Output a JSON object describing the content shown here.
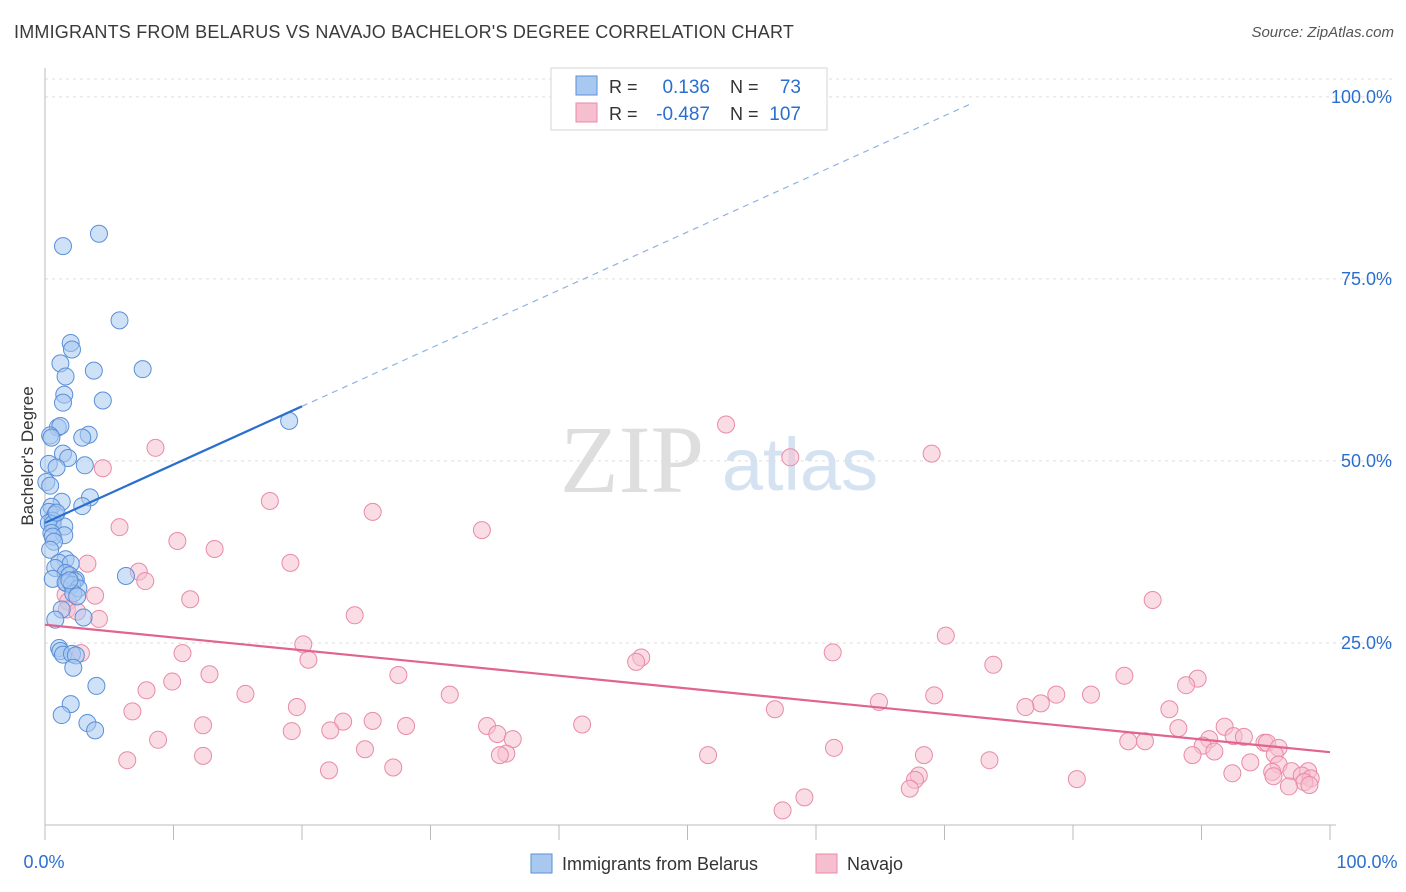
{
  "chart_data": {
    "type": "scatter",
    "title": "IMMIGRANTS FROM BELARUS VS NAVAJO BACHELOR'S DEGREE CORRELATION CHART",
    "source": "Source: ZipAtlas.com",
    "ylabel": "Bachelor's Degree",
    "xlabel": "",
    "xlim": [
      0,
      100
    ],
    "ylim": [
      0,
      103
    ],
    "x_tick_labels": [
      "0.0%",
      "100.0%"
    ],
    "y_ticks": [
      25,
      50,
      75,
      100
    ],
    "y_tick_labels": [
      "25.0%",
      "50.0%",
      "75.0%",
      "100.0%"
    ],
    "watermark": {
      "zip": "ZIP",
      "atlas": "atlas"
    },
    "colors": {
      "belarus_fill": "#a8c8f0",
      "belarus_stroke": "#5a8fd8",
      "belarus_line": "#2a6fcf",
      "navajo_fill": "#f6bfd0",
      "navajo_stroke": "#e98aa8",
      "navajo_line": "#e0648f",
      "value_text": "#2a6fcf",
      "grid": "#dddddd"
    },
    "legend": {
      "position": "top-center",
      "rows": [
        {
          "r_label": "R =",
          "r_value": "0.136",
          "n_label": "N =",
          "n_value": "73"
        },
        {
          "r_label": "R =",
          "r_value": "-0.487",
          "n_label": "N =",
          "n_value": "107"
        }
      ]
    },
    "series": [
      {
        "name": "Immigrants from Belarus",
        "trend": {
          "x0": 0,
          "y0": 41.5,
          "x1": 20,
          "y1": 57.5,
          "dash_to_x": 72,
          "dash_to_y": 99
        },
        "points": [
          [
            1.4,
            79.5
          ],
          [
            4.2,
            81.2
          ],
          [
            5.8,
            69.3
          ],
          [
            2.0,
            66.2
          ],
          [
            2.1,
            65.3
          ],
          [
            1.2,
            63.4
          ],
          [
            3.8,
            62.4
          ],
          [
            7.6,
            62.6
          ],
          [
            1.6,
            61.6
          ],
          [
            1.5,
            59.1
          ],
          [
            4.5,
            58.3
          ],
          [
            1.4,
            58.0
          ],
          [
            19.0,
            55.5
          ],
          [
            1.0,
            54.6
          ],
          [
            1.2,
            54.8
          ],
          [
            0.4,
            53.5
          ],
          [
            0.5,
            53.2
          ],
          [
            3.4,
            53.6
          ],
          [
            2.9,
            53.2
          ],
          [
            1.4,
            51.0
          ],
          [
            1.8,
            50.4
          ],
          [
            0.3,
            49.6
          ],
          [
            0.9,
            49.1
          ],
          [
            3.1,
            49.4
          ],
          [
            0.1,
            47.1
          ],
          [
            0.4,
            46.6
          ],
          [
            1.3,
            44.4
          ],
          [
            3.5,
            45.0
          ],
          [
            0.5,
            43.7
          ],
          [
            2.9,
            43.8
          ],
          [
            0.3,
            43.0
          ],
          [
            0.8,
            42.6
          ],
          [
            0.6,
            41.8
          ],
          [
            0.3,
            41.5
          ],
          [
            0.6,
            41.3
          ],
          [
            1.5,
            41.0
          ],
          [
            0.5,
            40.1
          ],
          [
            1.5,
            39.8
          ],
          [
            0.6,
            39.6
          ],
          [
            0.7,
            38.9
          ],
          [
            0.4,
            37.8
          ],
          [
            1.6,
            36.5
          ],
          [
            1.1,
            36.0
          ],
          [
            2.0,
            35.9
          ],
          [
            0.8,
            35.3
          ],
          [
            1.6,
            34.6
          ],
          [
            1.9,
            34.3
          ],
          [
            6.3,
            34.2
          ],
          [
            0.6,
            33.8
          ],
          [
            2.4,
            33.7
          ],
          [
            1.7,
            33.2
          ],
          [
            2.3,
            33.5
          ],
          [
            1.6,
            33.3
          ],
          [
            2.1,
            33.0
          ],
          [
            2.6,
            32.5
          ],
          [
            2.2,
            31.8
          ],
          [
            2.5,
            31.4
          ],
          [
            1.3,
            29.6
          ],
          [
            3.0,
            28.5
          ],
          [
            0.8,
            28.2
          ],
          [
            1.1,
            24.3
          ],
          [
            1.2,
            23.9
          ],
          [
            1.4,
            23.4
          ],
          [
            2.1,
            23.5
          ],
          [
            2.4,
            23.3
          ],
          [
            2.2,
            21.6
          ],
          [
            4.0,
            19.1
          ],
          [
            2.0,
            16.6
          ],
          [
            1.3,
            15.1
          ],
          [
            3.3,
            14.0
          ],
          [
            3.9,
            13.0
          ],
          [
            0.9,
            42.9
          ],
          [
            1.9,
            33.6
          ]
        ]
      },
      {
        "name": "Navajo",
        "trend": {
          "x0": 0,
          "y0": 27.5,
          "x1": 100,
          "y1": 10.0
        },
        "points": [
          [
            53,
            55
          ],
          [
            69,
            51
          ],
          [
            8.6,
            51.8
          ],
          [
            4.5,
            49.0
          ],
          [
            58,
            50.5
          ],
          [
            17.5,
            44.5
          ],
          [
            25.5,
            43
          ],
          [
            34,
            40.5
          ],
          [
            5.8,
            40.9
          ],
          [
            10.3,
            39.0
          ],
          [
            13.2,
            37.9
          ],
          [
            19.1,
            36.0
          ],
          [
            3.3,
            35.9
          ],
          [
            7.3,
            34.8
          ],
          [
            1.7,
            34.5
          ],
          [
            7.8,
            33.5
          ],
          [
            1.6,
            31.6
          ],
          [
            1.8,
            30.7
          ],
          [
            3.9,
            31.5
          ],
          [
            11.3,
            31.0
          ],
          [
            86.2,
            30.9
          ],
          [
            1.7,
            29.6
          ],
          [
            2.5,
            29.3
          ],
          [
            24.1,
            28.8
          ],
          [
            4.2,
            28.3
          ],
          [
            70.1,
            26.0
          ],
          [
            20.1,
            24.8
          ],
          [
            2.8,
            23.6
          ],
          [
            10.7,
            23.6
          ],
          [
            61.3,
            23.7
          ],
          [
            46.4,
            23.0
          ],
          [
            20.5,
            22.7
          ],
          [
            46.0,
            22.4
          ],
          [
            73.8,
            22.0
          ],
          [
            12.8,
            20.7
          ],
          [
            27.5,
            20.6
          ],
          [
            84.0,
            20.5
          ],
          [
            89.7,
            20.1
          ],
          [
            9.9,
            19.7
          ],
          [
            88.8,
            19.2
          ],
          [
            7.9,
            18.5
          ],
          [
            15.6,
            18.0
          ],
          [
            31.5,
            17.9
          ],
          [
            69.2,
            17.8
          ],
          [
            78.7,
            17.9
          ],
          [
            81.4,
            17.9
          ],
          [
            64.9,
            16.9
          ],
          [
            77.5,
            16.7
          ],
          [
            76.3,
            16.2
          ],
          [
            19.6,
            16.2
          ],
          [
            6.8,
            15.6
          ],
          [
            56.8,
            15.9
          ],
          [
            87.5,
            15.9
          ],
          [
            23.2,
            14.2
          ],
          [
            25.5,
            14.3
          ],
          [
            41.8,
            13.8
          ],
          [
            12.3,
            13.7
          ],
          [
            28.1,
            13.6
          ],
          [
            34.4,
            13.6
          ],
          [
            88.2,
            13.3
          ],
          [
            91.8,
            13.5
          ],
          [
            22.2,
            13.0
          ],
          [
            19.2,
            12.9
          ],
          [
            35.2,
            12.5
          ],
          [
            92.5,
            12.2
          ],
          [
            93.3,
            12.1
          ],
          [
            90.6,
            11.8
          ],
          [
            8.8,
            11.7
          ],
          [
            36.4,
            11.8
          ],
          [
            85.6,
            11.5
          ],
          [
            84.3,
            11.5
          ],
          [
            94.9,
            11.3
          ],
          [
            95.1,
            11.3
          ],
          [
            90.1,
            10.9
          ],
          [
            96.0,
            10.6
          ],
          [
            61.4,
            10.6
          ],
          [
            24.9,
            10.4
          ],
          [
            91.0,
            10.1
          ],
          [
            35.9,
            9.8
          ],
          [
            35.4,
            9.6
          ],
          [
            95.7,
            9.7
          ],
          [
            89.3,
            9.6
          ],
          [
            51.6,
            9.6
          ],
          [
            68.4,
            9.6
          ],
          [
            12.3,
            9.5
          ],
          [
            73.5,
            8.9
          ],
          [
            6.4,
            8.9
          ],
          [
            93.8,
            8.6
          ],
          [
            96.0,
            8.3
          ],
          [
            22.1,
            7.5
          ],
          [
            27.1,
            7.9
          ],
          [
            95.5,
            7.3
          ],
          [
            97.0,
            7.4
          ],
          [
            98.3,
            7.4
          ],
          [
            92.4,
            7.1
          ],
          [
            97.8,
            6.8
          ],
          [
            95.6,
            6.7
          ],
          [
            68.0,
            6.8
          ],
          [
            67.7,
            6.2
          ],
          [
            80.3,
            6.3
          ],
          [
            98.5,
            6.4
          ],
          [
            98.0,
            5.9
          ],
          [
            98.4,
            5.5
          ],
          [
            96.8,
            5.3
          ],
          [
            59.1,
            3.8
          ],
          [
            57.4,
            2.0
          ],
          [
            67.3,
            5.0
          ]
        ]
      }
    ]
  }
}
